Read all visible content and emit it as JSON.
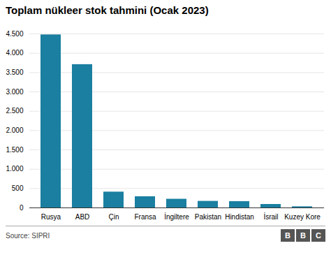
{
  "chart_data": {
    "type": "bar",
    "title": "Toplam nükleer stok tahmini (Ocak 2023)",
    "categories": [
      "Rusya",
      "ABD",
      "Çin",
      "Fransa",
      "İngiltere",
      "Pakistan",
      "Hindistan",
      "İsrail",
      "Kuzey Kore"
    ],
    "values": [
      4477,
      3708,
      410,
      290,
      225,
      170,
      164,
      90,
      30
    ],
    "color": "#1a7fa0",
    "ylim": [
      0,
      4700
    ],
    "yticks": [
      0,
      500,
      {
        "value": 1000,
        "label": "1.000"
      },
      {
        "value": 1500,
        "label": "1.500"
      },
      {
        "value": 2000,
        "label": "2.000"
      },
      {
        "value": 2500,
        "label": "2.500"
      },
      {
        "value": 3000,
        "label": "3.000"
      },
      {
        "value": 3500,
        "label": "3.500"
      },
      {
        "value": 4000,
        "label": "4.000"
      },
      {
        "value": 4500,
        "label": "4.500"
      }
    ],
    "grid": true,
    "annotations": [
      "Source: SIPRI",
      "B",
      "B",
      "C"
    ]
  }
}
